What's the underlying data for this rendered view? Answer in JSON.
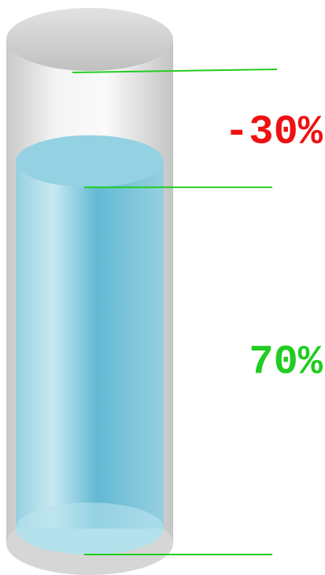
{
  "chart_data": {
    "type": "tank",
    "values": [
      70,
      -30
    ],
    "value_labels": [
      "70%",
      "-30%"
    ],
    "colors": [
      "#22cc22",
      "#ee1111"
    ],
    "fill_color": "#6cc3db",
    "ylim": [
      0,
      100
    ]
  }
}
